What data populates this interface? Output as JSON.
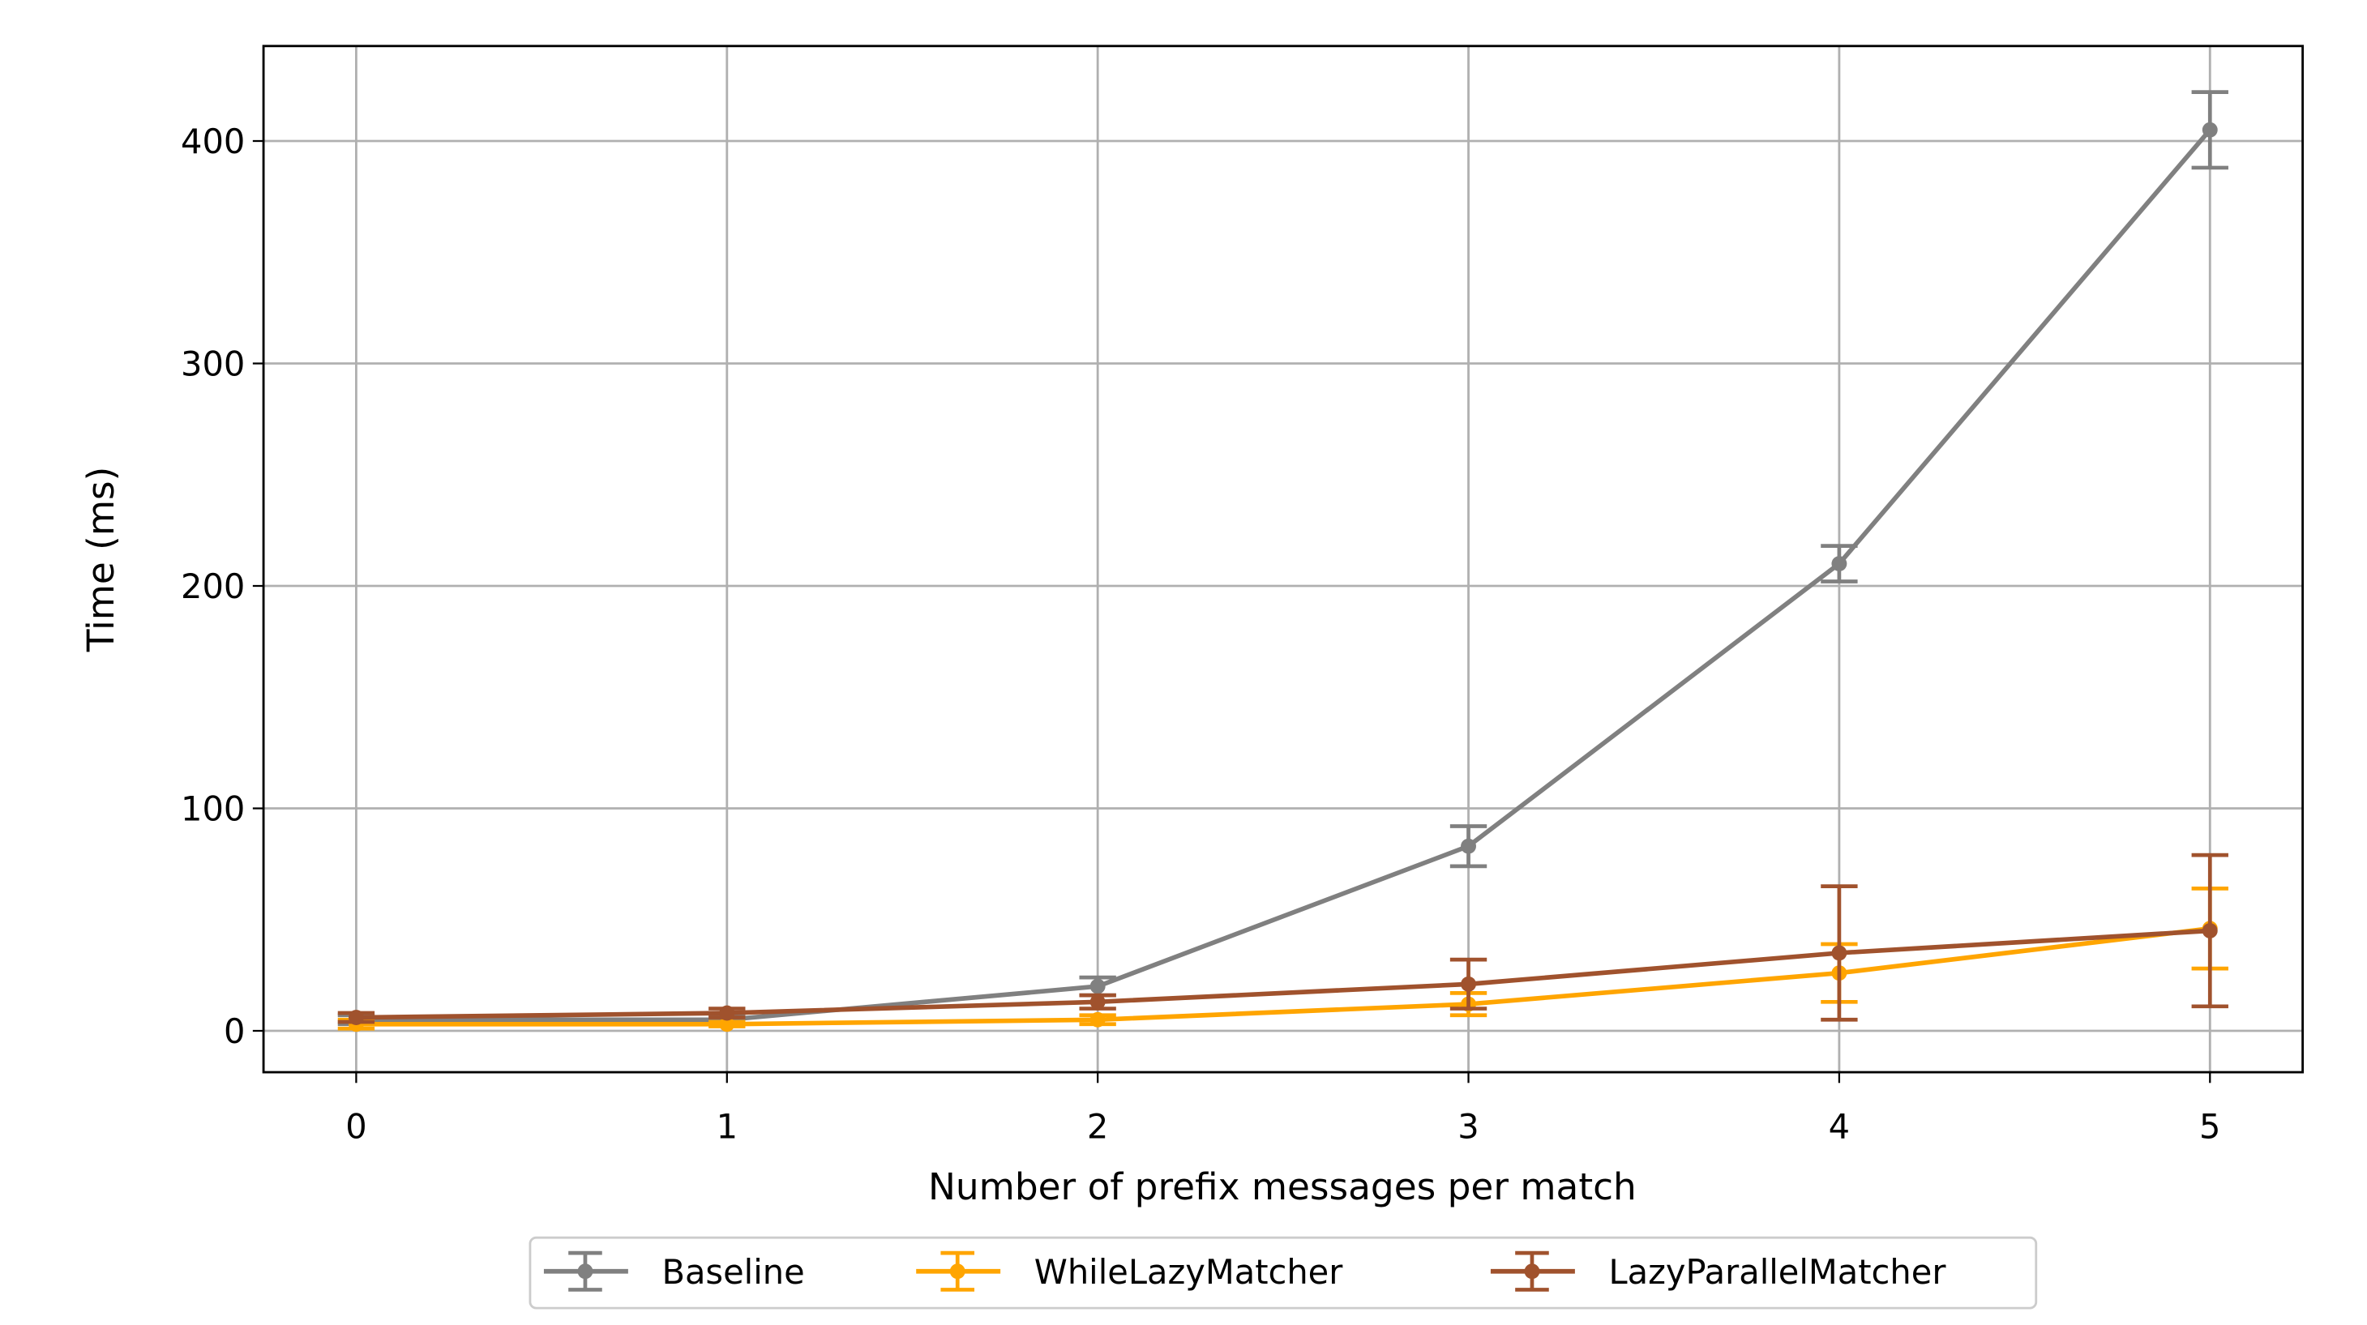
{
  "chart_data": {
    "type": "line",
    "x_label": "Number of prefix messages per match",
    "y_label": "Time (ms)",
    "x": [
      0,
      1,
      2,
      3,
      4,
      5
    ],
    "xlim": [
      -0.25,
      5.25
    ],
    "xticks": [
      0,
      1,
      2,
      3,
      4,
      5
    ],
    "ylim": [
      -18.6,
      442.7
    ],
    "yticks": [
      0,
      100,
      200,
      300,
      400
    ],
    "grid": true,
    "legend": "below",
    "series": [
      {
        "name": "Baseline",
        "color": "#808080",
        "values": [
          5,
          5,
          20,
          83,
          210,
          405
        ],
        "errors": [
          2,
          2,
          4,
          9,
          8,
          17
        ]
      },
      {
        "name": "WhileLazyMatcher",
        "color": "#ffa500",
        "values": [
          3,
          3,
          5,
          12,
          26,
          46
        ],
        "errors": [
          2,
          1,
          2,
          5,
          13,
          18
        ]
      },
      {
        "name": "LazyParallelMatcher",
        "color": "#a0522d",
        "values": [
          6,
          8,
          13,
          21,
          35,
          45
        ],
        "errors": [
          2,
          2,
          3,
          11,
          30,
          34
        ]
      }
    ]
  }
}
